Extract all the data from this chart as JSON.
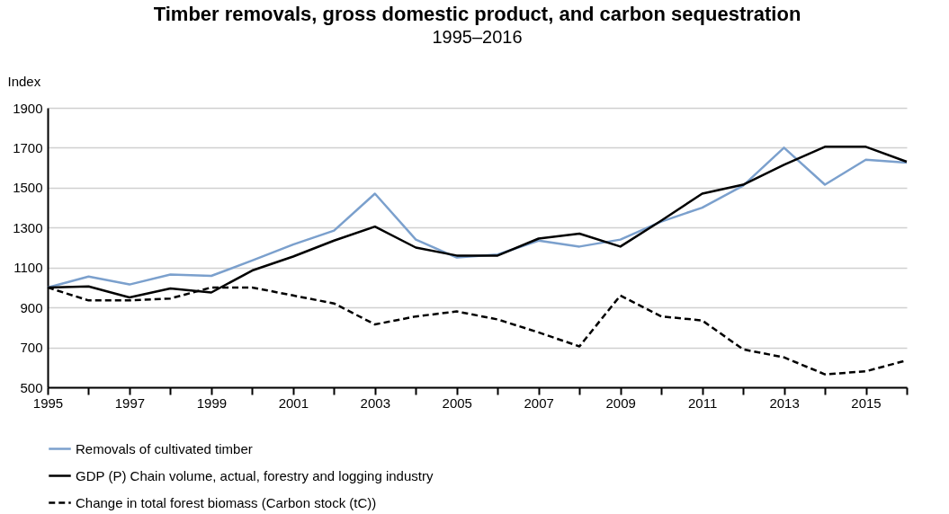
{
  "chart_data": {
    "type": "line",
    "title": "Timber removals, gross domestic product, and carbon sequestration",
    "subtitle": "1995–2016",
    "ylabel": "Index",
    "x": [
      1995,
      1996,
      1997,
      1998,
      1999,
      2000,
      2001,
      2002,
      2003,
      2004,
      2005,
      2006,
      2007,
      2008,
      2009,
      2010,
      2011,
      2012,
      2013,
      2014,
      2015,
      2016
    ],
    "series": [
      {
        "name": "Removals of cultivated timber",
        "color": "#7ba0cd",
        "values": [
          1000,
          1055,
          1015,
          1065,
          1058,
          1135,
          1215,
          1285,
          1470,
          1240,
          1150,
          1165,
          1235,
          1205,
          1240,
          1330,
          1400,
          1510,
          1700,
          1515,
          1640,
          1625
        ]
      },
      {
        "name": "GDP (P) Chain volume, actual, forestry and logging industry",
        "color": "#000000",
        "values": [
          1000,
          1005,
          950,
          995,
          975,
          1085,
          1155,
          1235,
          1305,
          1200,
          1160,
          1160,
          1245,
          1270,
          1205,
          1335,
          1470,
          1515,
          1615,
          1705,
          1705,
          1630
        ]
      },
      {
        "name": "Change in total forest biomass (Carbon stock (tC))",
        "color": "#000000",
        "line_style": "dashed",
        "values": [
          1000,
          935,
          935,
          945,
          1000,
          1000,
          960,
          920,
          815,
          855,
          880,
          840,
          775,
          705,
          960,
          855,
          835,
          690,
          650,
          565,
          580,
          635
        ]
      }
    ],
    "xlim": [
      1995,
      2016
    ],
    "xticks": [
      1995,
      {
        "value": 1996,
        "label": null
      },
      1997,
      {
        "value": 1998,
        "label": null
      },
      1999,
      {
        "value": 2000,
        "label": null
      },
      2001,
      {
        "value": 2002,
        "label": null
      },
      2003,
      {
        "value": 2004,
        "label": null
      },
      2005,
      {
        "value": 2006,
        "label": null
      },
      2007,
      {
        "value": 2008,
        "label": null
      },
      2009,
      {
        "value": 2010,
        "label": null
      },
      2011,
      {
        "value": 2012,
        "label": null
      },
      2013,
      {
        "value": 2014,
        "label": null
      },
      2015,
      {
        "value": 2016,
        "label": null
      }
    ],
    "ylim": [
      500,
      1900
    ],
    "yticks": [
      500,
      700,
      900,
      1100,
      1300,
      1500,
      1700,
      1900
    ],
    "grid": "y",
    "legend": "bottom",
    "marker": "none"
  }
}
